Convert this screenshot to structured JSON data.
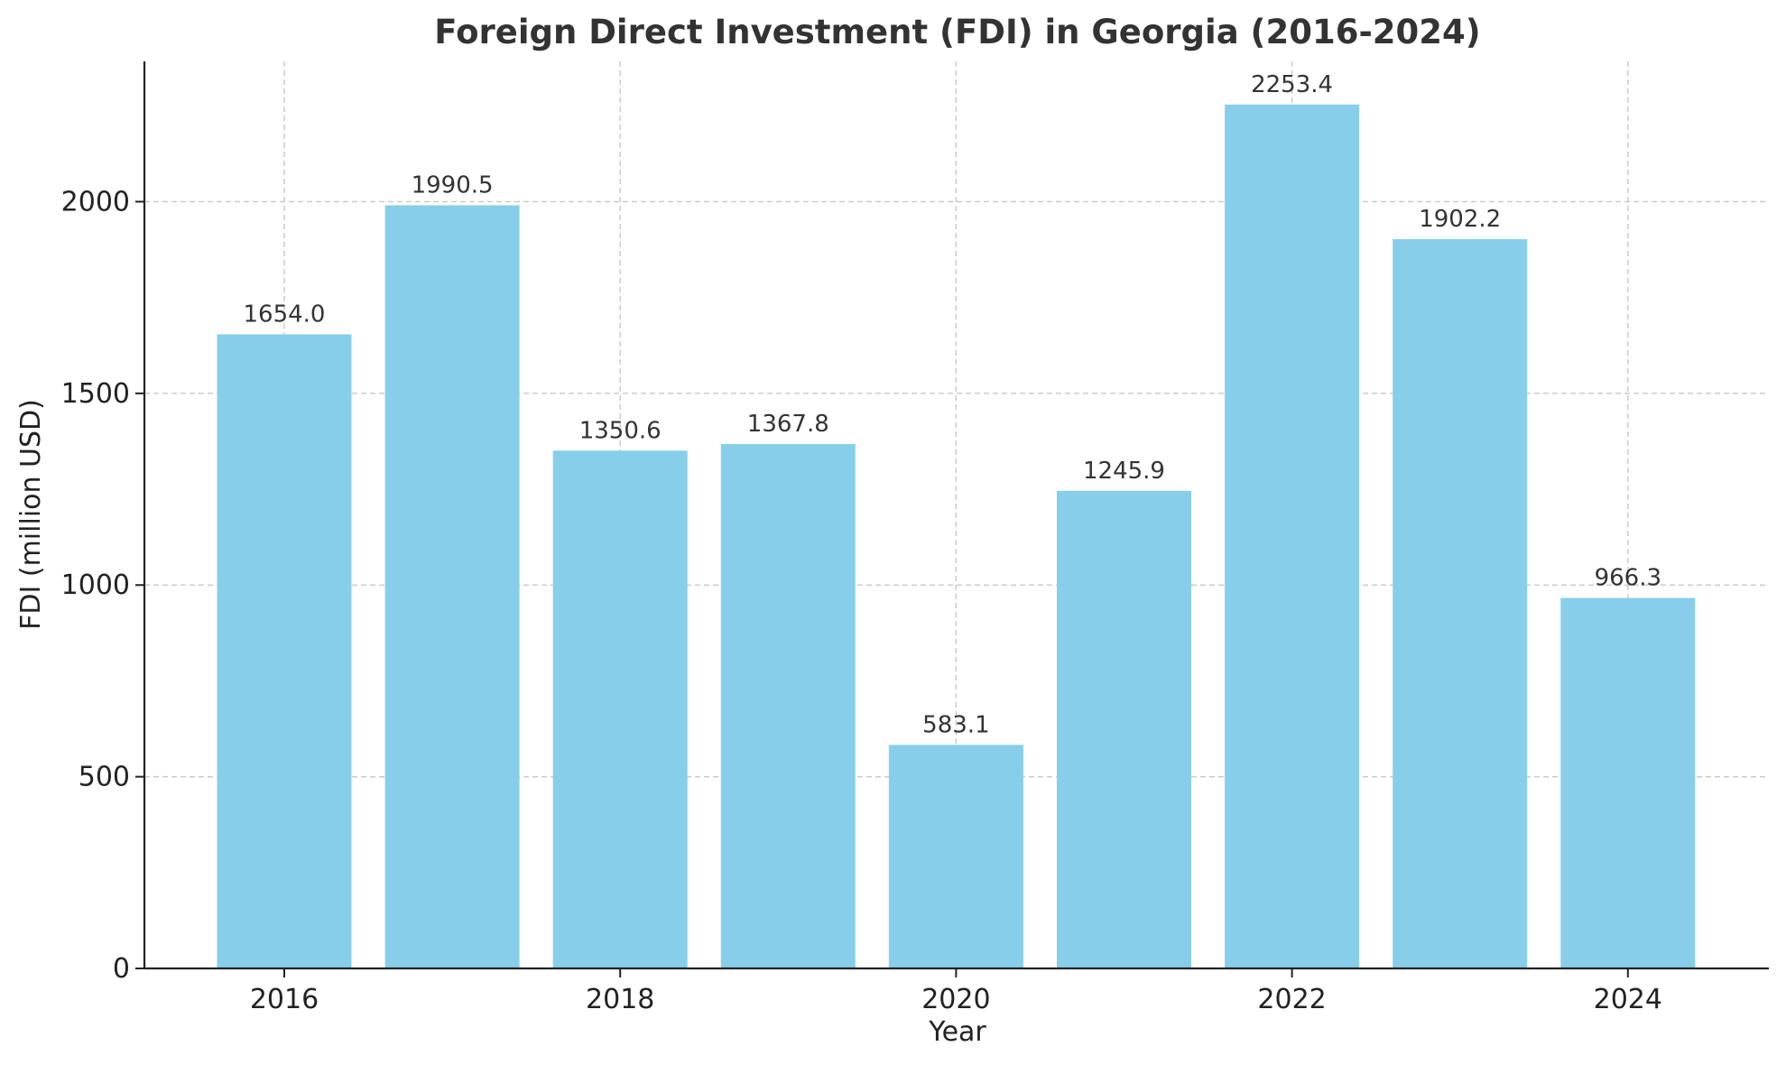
{
  "chart_data": {
    "type": "bar",
    "title": "Foreign Direct Investment (FDI) in Georgia (2016-2024)",
    "xlabel": "Year",
    "ylabel": "FDI (million USD)",
    "categories": [
      "2016",
      "2017",
      "2018",
      "2019",
      "2020",
      "2021",
      "2022",
      "2023",
      "2024"
    ],
    "values": [
      1654.0,
      1990.5,
      1350.6,
      1367.8,
      583.1,
      1245.9,
      2253.4,
      1902.2,
      966.3
    ],
    "value_labels": [
      "1654.0",
      "1990.5",
      "1350.6",
      "1367.8",
      "583.1",
      "1245.9",
      "2253.4",
      "1902.2",
      "966.3"
    ],
    "x_ticks": [
      "2016",
      "2018",
      "2020",
      "2022",
      "2024"
    ],
    "y_ticks": [
      0,
      500,
      1000,
      1500,
      2000
    ],
    "ylim": [
      0,
      2366
    ],
    "bar_color": "#87CEEB",
    "grid": true
  }
}
